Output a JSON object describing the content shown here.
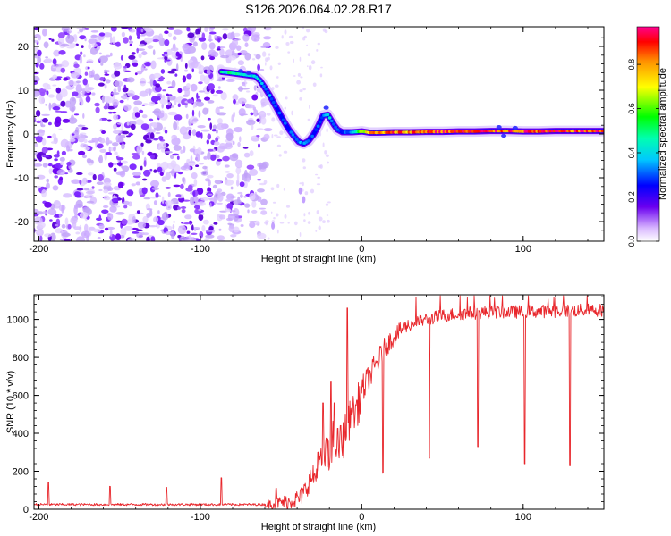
{
  "figure_title": "S126.2026.064.02.28.R17",
  "chart_data": [
    {
      "type": "heatmap",
      "xlabel": "Height of straight line (km)",
      "ylabel": "Frequency (Hz)",
      "xlim": [
        -203,
        150
      ],
      "ylim": [
        -24.5,
        24.5
      ],
      "x_ticks": [
        -200,
        -100,
        0,
        100
      ],
      "x_tick_labels": [
        "-200",
        "-100",
        "0",
        "100"
      ],
      "y_ticks": [
        -20,
        -10,
        0,
        10,
        20
      ],
      "y_tick_labels": [
        "-20",
        "-10",
        "0",
        "10",
        "20"
      ],
      "grid": false,
      "noise_region": {
        "x_start": -203,
        "x_end": -58,
        "dense_until": -88
      },
      "ridge": {
        "x": [
          -87,
          -82,
          -78,
          -74,
          -70,
          -66,
          -63,
          -60,
          -57,
          -54,
          -51,
          -48,
          -45,
          -42,
          -39,
          -36,
          -33,
          -30,
          -27,
          -24,
          -21,
          -19,
          -17,
          -15,
          -12,
          -9,
          -6,
          -3,
          0,
          5,
          10,
          20,
          30,
          40,
          50,
          60,
          70,
          80,
          90,
          100,
          110,
          120,
          130,
          140,
          150
        ],
        "y": [
          14.2,
          14.0,
          13.8,
          13.6,
          13.4,
          13.2,
          12.2,
          10.6,
          8.8,
          6.8,
          4.8,
          2.8,
          1.0,
          -0.5,
          -1.8,
          -2.2,
          -1.6,
          -0.2,
          1.8,
          4.2,
          4.4,
          3.2,
          2.0,
          1.0,
          0.4,
          0.4,
          0.4,
          0.5,
          0.6,
          0.3,
          0.3,
          0.4,
          0.4,
          0.5,
          0.5,
          0.6,
          0.6,
          0.7,
          0.7,
          0.6,
          0.6,
          0.7,
          0.7,
          0.7,
          0.7
        ],
        "amplitude": [
          0.45,
          0.5,
          0.5,
          0.45,
          0.45,
          0.4,
          0.4,
          0.35,
          0.35,
          0.3,
          0.3,
          0.3,
          0.3,
          0.3,
          0.35,
          0.35,
          0.3,
          0.3,
          0.3,
          0.35,
          0.4,
          0.4,
          0.35,
          0.3,
          0.3,
          0.3,
          0.35,
          0.45,
          0.7,
          0.8,
          0.8,
          0.85,
          0.85,
          0.9,
          0.9,
          0.9,
          0.9,
          0.9,
          0.9,
          0.9,
          0.9,
          0.9,
          0.9,
          0.9,
          0.9
        ]
      },
      "colorbar": {
        "label": "Normalized spectral amplitude",
        "range": [
          0,
          0.97
        ],
        "ticks": [
          0.0,
          0.2,
          0.4,
          0.6,
          0.8
        ],
        "tick_labels": [
          "0.0",
          "0.2",
          "0.4",
          "0.6",
          "0.8"
        ],
        "colors": [
          "#ffffff",
          "#6a00f0",
          "#0000ff",
          "#00ffff",
          "#00ff00",
          "#ffff00",
          "#ff8800",
          "#ff0000",
          "#ff00a0"
        ]
      }
    },
    {
      "type": "line",
      "color": "#e8262b",
      "xlabel": "Height of straight line (km)",
      "ylabel": "SNR (10 * v/v)",
      "xlim": [
        -203,
        150
      ],
      "ylim": [
        0,
        1130
      ],
      "x_ticks": [
        -200,
        -100,
        0,
        100
      ],
      "x_tick_labels": [
        "-200",
        "-100",
        "0",
        "100"
      ],
      "y_ticks": [
        0,
        200,
        400,
        600,
        800,
        1000
      ],
      "y_tick_labels": [
        "0",
        "200",
        "400",
        "600",
        "800",
        "1000"
      ],
      "grid": false,
      "envelope": {
        "x": [
          -203,
          -60,
          -45,
          -38,
          -35,
          -32,
          -28,
          -25,
          -22,
          -20,
          -18,
          -15,
          -12,
          -10,
          -8,
          -5,
          -2,
          0,
          5,
          10,
          15,
          20,
          25,
          30,
          35,
          40,
          45,
          50,
          60,
          70,
          80,
          100,
          120,
          150
        ],
        "y": [
          25,
          25,
          40,
          60,
          100,
          160,
          180,
          260,
          300,
          240,
          380,
          330,
          350,
          420,
          460,
          500,
          560,
          620,
          700,
          780,
          860,
          910,
          950,
          975,
          990,
          1000,
          1010,
          1020,
          1030,
          1035,
          1040,
          1040,
          1045,
          1050
        ]
      },
      "spikes": [
        {
          "x": -194,
          "y": 140
        },
        {
          "x": -156,
          "y": 120
        },
        {
          "x": -121,
          "y": 115
        },
        {
          "x": -87,
          "y": 165
        },
        {
          "x": -53,
          "y": 110
        },
        {
          "x": -27,
          "y": 300
        },
        {
          "x": -24,
          "y": 560
        },
        {
          "x": -19,
          "y": 670
        },
        {
          "x": -17,
          "y": 560
        },
        {
          "x": -13,
          "y": 440
        },
        {
          "x": -9,
          "y": 1060
        },
        {
          "x": -6,
          "y": 500
        }
      ],
      "dips": [
        {
          "x": 13,
          "y": 190
        },
        {
          "x": 42,
          "y": 270
        },
        {
          "x": 72,
          "y": 330
        },
        {
          "x": 101,
          "y": 240
        },
        {
          "x": 129,
          "y": 230
        }
      ]
    }
  ]
}
